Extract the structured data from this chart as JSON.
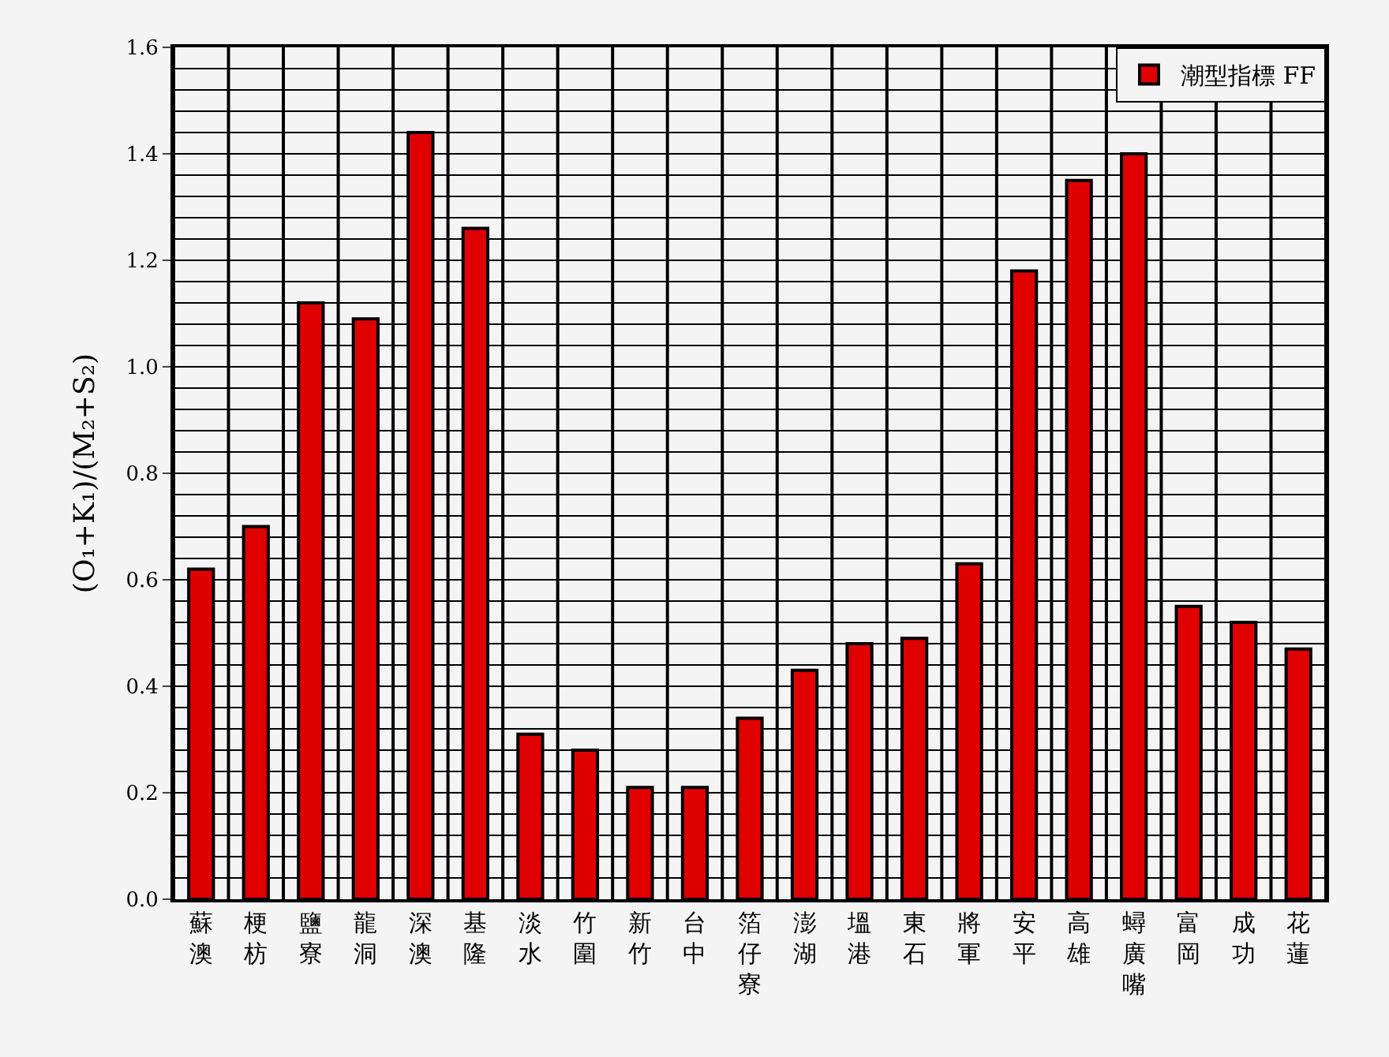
{
  "chart_data": {
    "type": "bar",
    "ylabel": "(O₁+K₁)/(M₂+S₂)",
    "categories": [
      "蘇澳",
      "梗枋",
      "鹽寮",
      "龍洞",
      "深澳",
      "基隆",
      "淡水",
      "竹圍",
      "新竹",
      "台中",
      "箔仔寮",
      "澎湖",
      "塭港",
      "東石",
      "將軍",
      "安平",
      "高雄",
      "蟳廣嘴",
      "富岡",
      "成功",
      "花蓮"
    ],
    "series": [
      {
        "name": "潮型指標 FF",
        "color": "#e00000",
        "values": [
          0.62,
          0.7,
          1.12,
          1.09,
          1.44,
          1.26,
          0.31,
          0.28,
          0.21,
          0.21,
          0.34,
          0.43,
          0.48,
          0.49,
          0.63,
          1.18,
          1.35,
          1.4,
          0.55,
          0.52,
          0.47
        ]
      }
    ],
    "ylim": [
      0,
      1.6
    ],
    "yticks": [
      {
        "value": 0,
        "label": "0.0"
      },
      {
        "value": 0.2,
        "label": "0.2"
      },
      {
        "value": 0.4,
        "label": "0.4"
      },
      {
        "value": 0.6,
        "label": "0.6"
      },
      {
        "value": 0.8,
        "label": "0.8"
      },
      {
        "value": 1.0,
        "label": "1.0"
      },
      {
        "value": 1.2,
        "label": "1.2"
      },
      {
        "value": 1.4,
        "label": "1.4"
      },
      {
        "value": 1.6,
        "label": "1.6"
      }
    ],
    "grid": true,
    "legend": "top right"
  }
}
